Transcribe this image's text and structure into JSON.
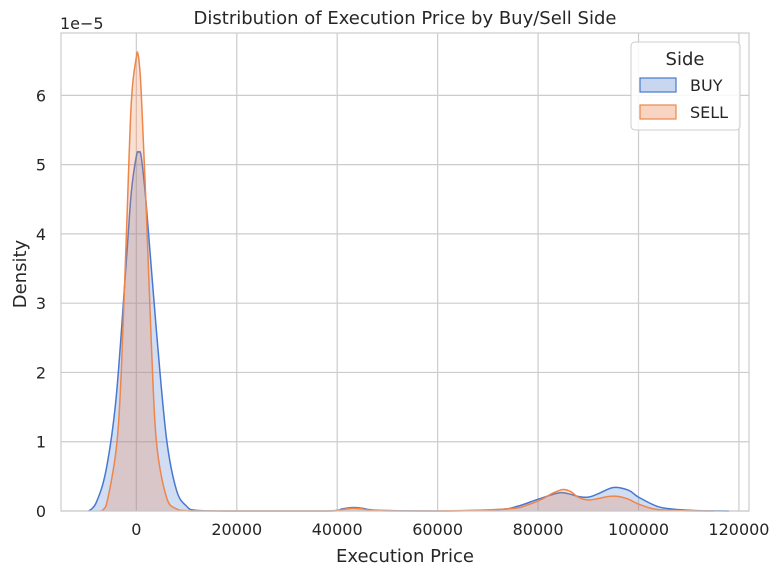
{
  "chart_data": {
    "type": "area",
    "title": "Distribution of Execution Price by Buy/Sell Side",
    "xlabel": "Execution Price",
    "ylabel": "Density",
    "y_offset_label": "1e−5",
    "xlim": [
      -15000,
      122000
    ],
    "ylim": [
      0,
      6.9
    ],
    "xticks": [
      0,
      20000,
      40000,
      60000,
      80000,
      100000,
      120000
    ],
    "xtick_labels": [
      "0",
      "20000",
      "40000",
      "60000",
      "80000",
      "100000",
      "120000"
    ],
    "yticks": [
      0,
      1,
      2,
      3,
      4,
      5,
      6
    ],
    "ytick_labels": [
      "0",
      "1",
      "2",
      "3",
      "4",
      "5",
      "6"
    ],
    "grid": true,
    "legend": {
      "title": "Side",
      "position": "top-right"
    },
    "series": [
      {
        "name": "BUY",
        "color": "#4878d0",
        "fill": "#c9d6ef",
        "x": [
          -9500,
          -8000,
          -6000,
          -4000,
          -2000,
          -1000,
          0,
          500,
          1000,
          2000,
          4000,
          6000,
          8000,
          10000,
          12000,
          20000,
          38000,
          41000,
          43000,
          45000,
          48000,
          60000,
          72000,
          76000,
          80000,
          84000,
          86000,
          88000,
          90000,
          92000,
          95000,
          98000,
          100000,
          104000,
          108000,
          112000,
          116000,
          118000
        ],
        "y": [
          0,
          0.12,
          0.6,
          1.65,
          3.6,
          4.6,
          5.12,
          5.18,
          5.1,
          4.4,
          2.6,
          1.05,
          0.3,
          0.07,
          0.01,
          0,
          0,
          0.03,
          0.05,
          0.04,
          0.01,
          0,
          0.02,
          0.07,
          0.17,
          0.26,
          0.25,
          0.21,
          0.2,
          0.25,
          0.34,
          0.3,
          0.2,
          0.06,
          0.02,
          0.005,
          0.001,
          0
        ]
      },
      {
        "name": "SELL",
        "color": "#ee854a",
        "fill": "#f8d5c2",
        "x": [
          -7000,
          -6000,
          -4000,
          -3000,
          -2000,
          -1000,
          0,
          300,
          600,
          1000,
          2000,
          3000,
          4000,
          6000,
          8000,
          10000,
          12000,
          20000,
          38000,
          41000,
          43000,
          45000,
          48000,
          60000,
          74000,
          78000,
          81000,
          83000,
          85000,
          86500,
          88000,
          90000,
          92000,
          94000,
          96000,
          98000,
          100000,
          103000,
          106000,
          110000,
          115000
        ],
        "y": [
          0,
          0.08,
          0.9,
          2.0,
          3.95,
          5.9,
          6.55,
          6.6,
          6.45,
          6.0,
          4.3,
          2.4,
          1.0,
          0.2,
          0.03,
          0.005,
          0,
          0,
          0,
          0.02,
          0.04,
          0.03,
          0.005,
          0,
          0.03,
          0.09,
          0.18,
          0.26,
          0.31,
          0.28,
          0.2,
          0.16,
          0.18,
          0.21,
          0.21,
          0.17,
          0.1,
          0.03,
          0.01,
          0.002,
          0
        ]
      }
    ]
  }
}
